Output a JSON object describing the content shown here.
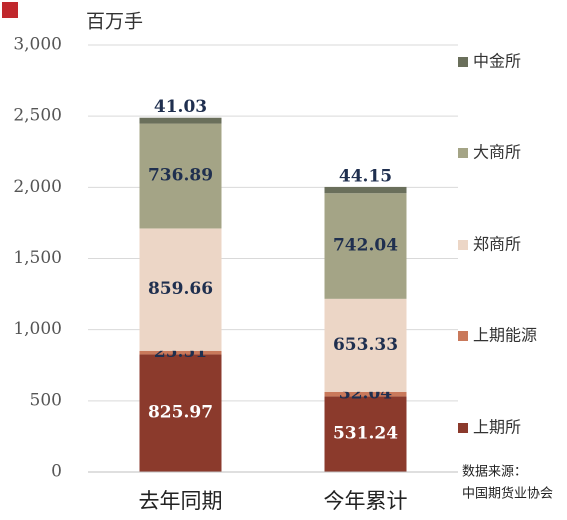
{
  "chart_data": {
    "type": "stacked_bar",
    "unit_label": "百万手",
    "categories": [
      "去年同期",
      "今年累计"
    ],
    "series": [
      {
        "name": "上期所",
        "color": "#8b3a2c",
        "values": [
          825.97,
          531.24
        ]
      },
      {
        "name": "上期能源",
        "color": "#c9795b",
        "values": [
          25.51,
          32.04
        ]
      },
      {
        "name": "郑商所",
        "color": "#ecd6c6",
        "values": [
          859.66,
          653.33
        ]
      },
      {
        "name": "大商所",
        "color": "#a4a486",
        "values": [
          736.89,
          742.04
        ]
      },
      {
        "name": "中金所",
        "color": "#6a6f5b",
        "values": [
          41.03,
          44.15
        ]
      }
    ],
    "ylim": [
      0,
      3000
    ],
    "yticks": [
      0,
      500,
      {
        "value": 1000,
        "label": "1,000"
      },
      {
        "value": 1500,
        "label": "1,500"
      },
      {
        "value": 2000,
        "label": "2,000"
      },
      {
        "value": 2500,
        "label": "2,500"
      },
      {
        "value": 3000,
        "label": "3,000"
      }
    ],
    "grid": true,
    "source": [
      "数据来源：",
      "中国期货业协会"
    ]
  }
}
